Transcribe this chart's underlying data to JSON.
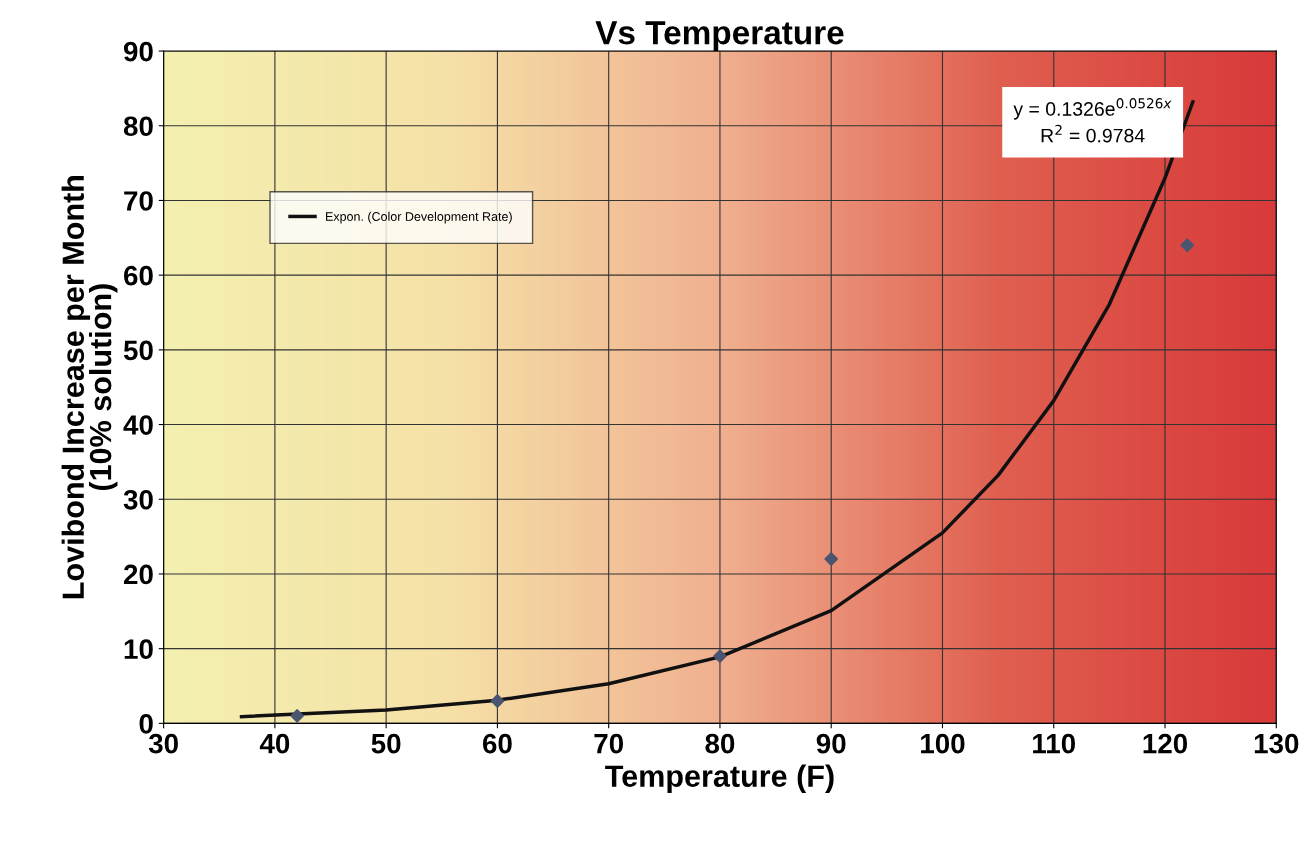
{
  "chart_data": {
    "type": "scatter",
    "title": "Vs Temperature",
    "xlabel": "Temperature (F)",
    "ylabel": "Lovibond Increase per Month\n(10% solution)",
    "xlim": [
      30,
      130
    ],
    "xticks": [
      30,
      40,
      50,
      60,
      70,
      80,
      90,
      100,
      110,
      120,
      130
    ],
    "ylim": [
      0,
      90
    ],
    "yticks": [
      0,
      10,
      20,
      30,
      40,
      50,
      60,
      70,
      80,
      90
    ],
    "grid": true,
    "legend": "top left",
    "series": [
      {
        "color": "#4a5570",
        "marker": "diamond",
        "x": [
          42,
          60,
          80,
          90,
          122
        ],
        "values": [
          1,
          3,
          9,
          22,
          64
        ]
      },
      {
        "type": "line",
        "name": "Expon. (Color Development Rate)",
        "color": "#111111",
        "marker": "none",
        "line_style": "solid",
        "x": [
          37,
          50,
          60,
          70,
          80,
          90,
          100,
          105,
          110,
          115,
          120,
          122.5
        ],
        "values": [
          0.9,
          1.8,
          3.1,
          5.3,
          8.9,
          15.1,
          25.5,
          33.2,
          43.2,
          56.1,
          73,
          83.2
        ]
      }
    ],
    "annotations": [
      "y = 0.1326e$^{0.0526x}$",
      "R$^{2}$ = 0.9784"
    ]
  }
}
